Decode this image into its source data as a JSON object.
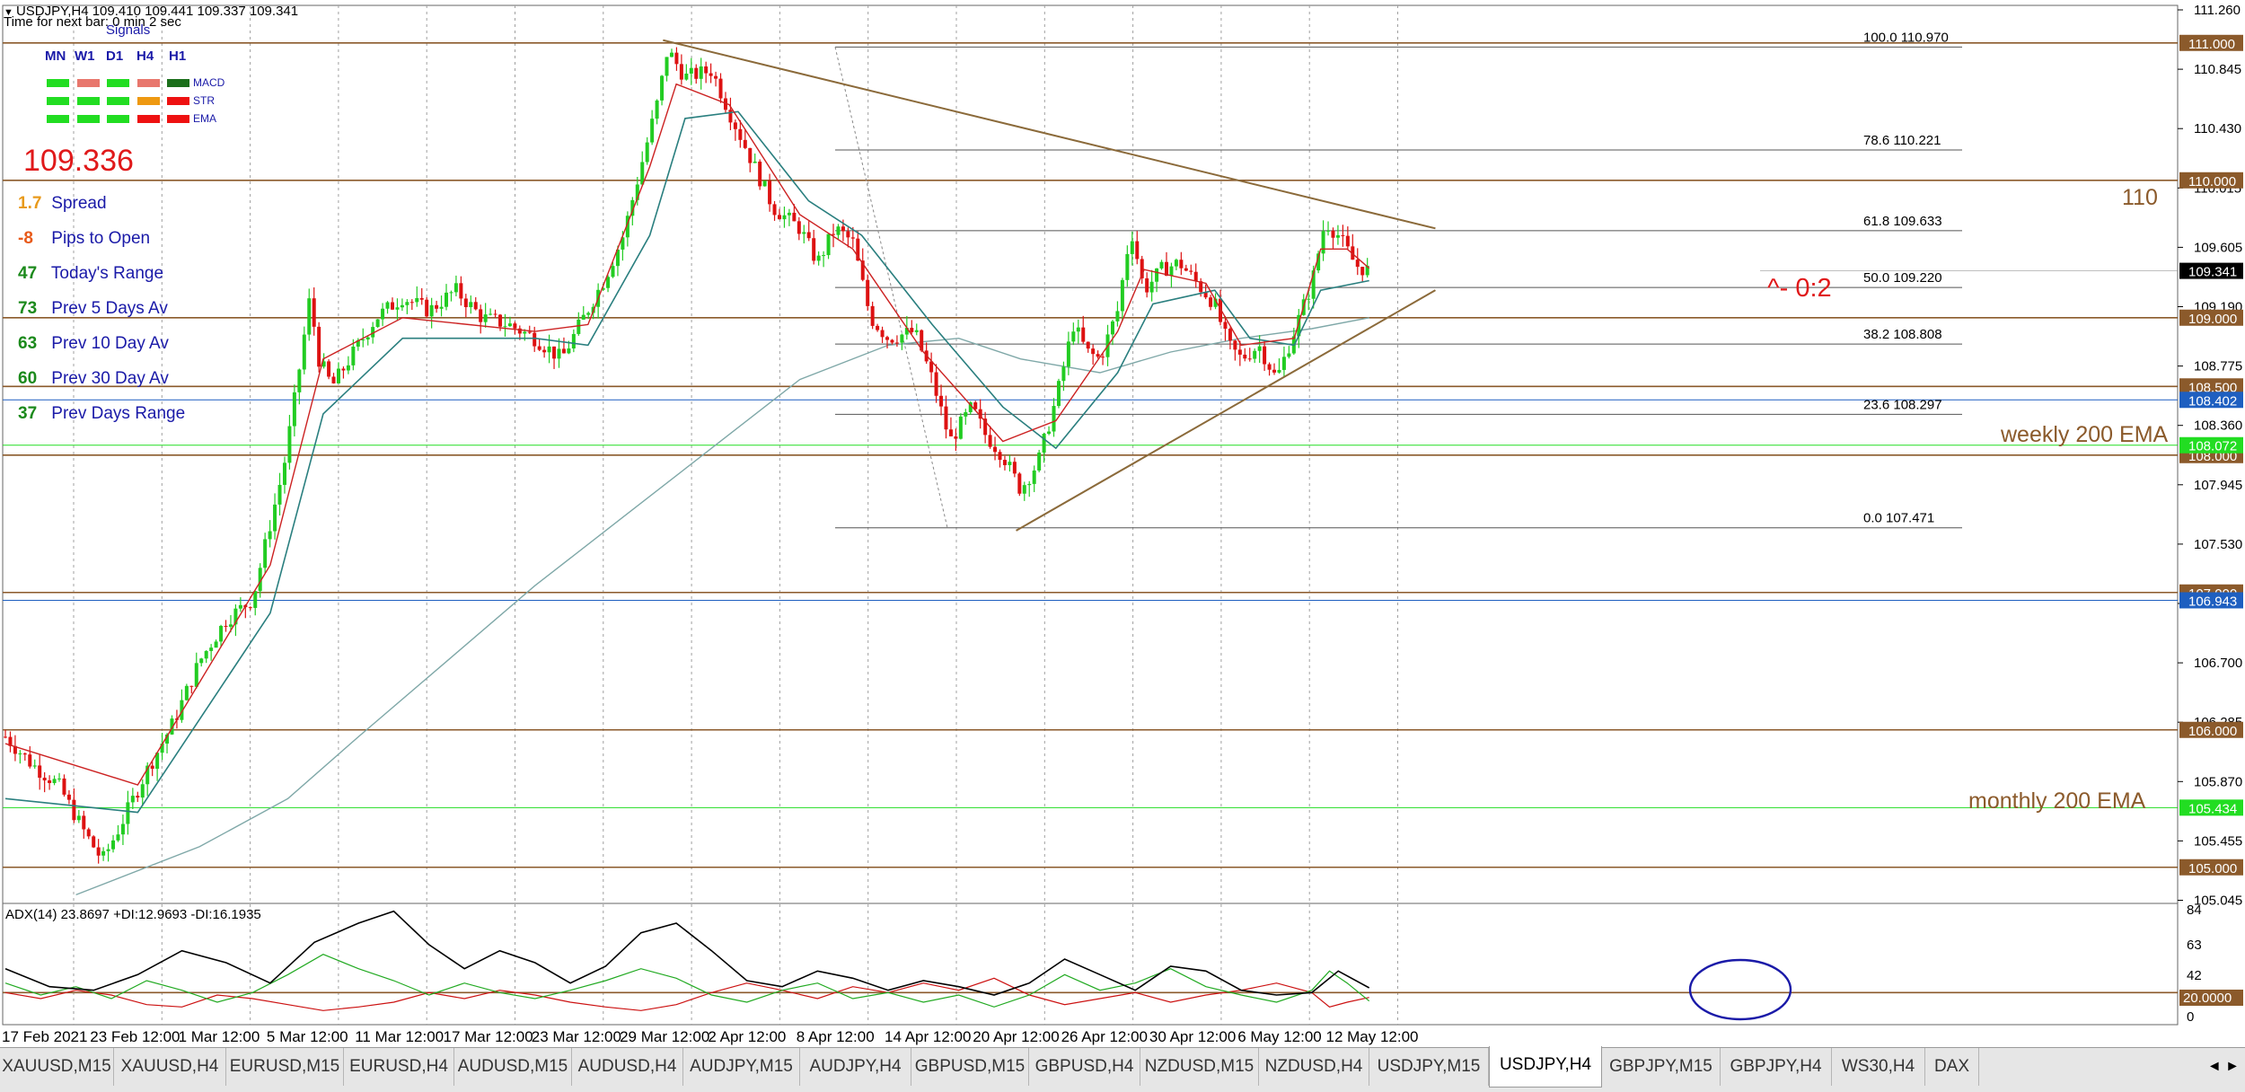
{
  "header": {
    "symbol_line": "USDJPY,H4  109.410 109.441 109.337 109.341",
    "timer_line": "Time for next bar: 0 min 2 sec",
    "menu_icon": "triangle-down-icon"
  },
  "signals": {
    "title": "Signals",
    "timeframes": [
      "MN",
      "W1",
      "D1",
      "H4",
      "H1"
    ],
    "indicators": [
      "MACD",
      "STR",
      "EMA"
    ],
    "grid": [
      [
        "#22dd22",
        "#e8776d",
        "#22dd22",
        "#e8776d",
        "#1b6f1b"
      ],
      [
        "#22dd22",
        "#22dd22",
        "#22dd22",
        "#ee9911",
        "#ee1111"
      ],
      [
        "#22dd22",
        "#22dd22",
        "#22dd22",
        "#ee1111",
        "#ee1111"
      ]
    ]
  },
  "big_price": "109.336",
  "stats": [
    {
      "value": "1.7",
      "label": "Spread",
      "color": "#e89a1c"
    },
    {
      "value": "-8",
      "label": "Pips to Open",
      "color": "#e85a1a"
    },
    {
      "value": "47",
      "label": "Today's Range",
      "color": "#1c8a1c"
    },
    {
      "value": "73",
      "label": "Prev 5 Days Av",
      "color": "#1c8a1c"
    },
    {
      "value": "63",
      "label": "Prev 10 Day Av",
      "color": "#1c8a1c"
    },
    {
      "value": "60",
      "label": "Prev 30 Day Av",
      "color": "#1c8a1c"
    },
    {
      "value": "37",
      "label": "Prev Days Range",
      "color": "#1c8a1c"
    }
  ],
  "chart_data": {
    "type": "line",
    "title": "USDJPY,H4",
    "colors": {
      "bull": "#22cc22",
      "bear": "#dd1111",
      "ema_fast": "#cc2222",
      "ema_mid": "#2a7f7f",
      "ema_slow": "#7fa8a8",
      "horizontal": "#8b5a2b",
      "trend": "#8b6a3a",
      "grid": "#a0a0a0"
    },
    "x_dates": [
      "17 Feb 2021",
      "23 Feb 12:00",
      "1 Mar 12:00",
      "5 Mar 12:00",
      "11 Mar 12:00",
      "17 Mar 12:00",
      "23 Mar 12:00",
      "29 Mar 12:00",
      "2 Apr 12:00",
      "8 Apr 12:00",
      "14 Apr 12:00",
      "20 Apr 12:00",
      "26 Apr 12:00",
      "30 Apr 12:00",
      "6 May 12:00",
      "12 May 12:00"
    ],
    "ylim": [
      104.75,
      111.26
    ],
    "y_ticks": [
      "111.260",
      "110.845",
      "110.430",
      "110.015",
      "109.605",
      "109.190",
      "108.775",
      "108.360",
      "107.945",
      "107.530",
      "107.115",
      "106.700",
      "106.285",
      "105.870",
      "105.455",
      "105.045"
    ],
    "price_path": [
      [
        0,
        105.95
      ],
      [
        0.3,
        105.75
      ],
      [
        0.6,
        105.6
      ],
      [
        0.9,
        105.25
      ],
      [
        1.1,
        105.05
      ],
      [
        1.3,
        105.3
      ],
      [
        1.6,
        105.7
      ],
      [
        1.9,
        106.05
      ],
      [
        2.2,
        106.5
      ],
      [
        2.5,
        106.8
      ],
      [
        2.8,
        106.95
      ],
      [
        3.0,
        107.5
      ],
      [
        3.15,
        107.9
      ],
      [
        3.3,
        108.5
      ],
      [
        3.45,
        109.15
      ],
      [
        3.55,
        108.7
      ],
      [
        3.7,
        108.5
      ],
      [
        3.9,
        108.7
      ],
      [
        4.2,
        109.0
      ],
      [
        4.5,
        109.15
      ],
      [
        4.8,
        109.05
      ],
      [
        5.1,
        109.2
      ],
      [
        5.4,
        109.0
      ],
      [
        5.7,
        108.95
      ],
      [
        6.0,
        108.85
      ],
      [
        6.3,
        108.7
      ],
      [
        6.55,
        109.0
      ],
      [
        6.8,
        109.3
      ],
      [
        7.0,
        109.6
      ],
      [
        7.2,
        110.1
      ],
      [
        7.4,
        110.6
      ],
      [
        7.5,
        110.95
      ],
      [
        7.7,
        110.75
      ],
      [
        8.0,
        110.8
      ],
      [
        8.2,
        110.5
      ],
      [
        8.45,
        110.15
      ],
      [
        8.7,
        109.8
      ],
      [
        9.0,
        109.65
      ],
      [
        9.2,
        109.4
      ],
      [
        9.4,
        109.65
      ],
      [
        9.6,
        109.55
      ],
      [
        9.8,
        109.0
      ],
      [
        10.0,
        108.85
      ],
      [
        10.3,
        108.9
      ],
      [
        10.5,
        108.55
      ],
      [
        10.7,
        108.1
      ],
      [
        10.95,
        108.35
      ],
      [
        11.1,
        108.15
      ],
      [
        11.3,
        108.0
      ],
      [
        11.5,
        107.75
      ],
      [
        11.7,
        107.95
      ],
      [
        11.9,
        108.4
      ],
      [
        12.1,
        108.95
      ],
      [
        12.25,
        108.75
      ],
      [
        12.4,
        108.7
      ],
      [
        12.6,
        109.05
      ],
      [
        12.75,
        109.65
      ],
      [
        12.9,
        109.2
      ],
      [
        13.1,
        109.35
      ],
      [
        13.3,
        109.4
      ],
      [
        13.5,
        109.25
      ],
      [
        13.7,
        109.1
      ],
      [
        13.85,
        108.8
      ],
      [
        14.0,
        108.7
      ],
      [
        14.2,
        108.8
      ],
      [
        14.4,
        108.55
      ],
      [
        14.6,
        108.9
      ],
      [
        14.8,
        109.25
      ],
      [
        14.95,
        109.7
      ],
      [
        15.1,
        109.6
      ],
      [
        15.3,
        109.38
      ],
      [
        15.45,
        109.34
      ]
    ],
    "ema_fast": [
      [
        0,
        105.9
      ],
      [
        1.5,
        105.6
      ],
      [
        3.0,
        107.2
      ],
      [
        3.6,
        108.7
      ],
      [
        4.5,
        109.0
      ],
      [
        6.0,
        108.9
      ],
      [
        6.6,
        108.95
      ],
      [
        7.3,
        110.1
      ],
      [
        7.6,
        110.7
      ],
      [
        8.2,
        110.55
      ],
      [
        9.0,
        109.75
      ],
      [
        9.6,
        109.5
      ],
      [
        10.4,
        108.75
      ],
      [
        11.3,
        108.1
      ],
      [
        11.9,
        108.25
      ],
      [
        12.6,
        108.9
      ],
      [
        12.9,
        109.35
      ],
      [
        13.6,
        109.25
      ],
      [
        14.0,
        108.8
      ],
      [
        14.6,
        108.85
      ],
      [
        14.9,
        109.5
      ],
      [
        15.2,
        109.5
      ],
      [
        15.45,
        109.36
      ]
    ],
    "ema_mid": [
      [
        0,
        105.5
      ],
      [
        1.5,
        105.4
      ],
      [
        3.0,
        106.85
      ],
      [
        3.6,
        108.3
      ],
      [
        4.5,
        108.85
      ],
      [
        6.0,
        108.85
      ],
      [
        6.6,
        108.8
      ],
      [
        7.3,
        109.6
      ],
      [
        7.7,
        110.45
      ],
      [
        8.3,
        110.5
      ],
      [
        9.1,
        109.85
      ],
      [
        9.7,
        109.6
      ],
      [
        10.5,
        108.95
      ],
      [
        11.3,
        108.35
      ],
      [
        11.9,
        108.05
      ],
      [
        12.6,
        108.6
      ],
      [
        13.0,
        109.1
      ],
      [
        13.7,
        109.2
      ],
      [
        14.1,
        108.85
      ],
      [
        14.6,
        108.8
      ],
      [
        14.9,
        109.2
      ],
      [
        15.45,
        109.27
      ]
    ],
    "ema_slow": [
      [
        0.8,
        104.8
      ],
      [
        2.2,
        105.15
      ],
      [
        3.2,
        105.5
      ],
      [
        4.0,
        105.95
      ],
      [
        5.0,
        106.5
      ],
      [
        6.0,
        107.05
      ],
      [
        7.0,
        107.55
      ],
      [
        8.0,
        108.05
      ],
      [
        9.0,
        108.55
      ],
      [
        10.0,
        108.8
      ],
      [
        10.8,
        108.85
      ],
      [
        11.5,
        108.7
      ],
      [
        12.4,
        108.6
      ],
      [
        13.2,
        108.75
      ],
      [
        14.0,
        108.85
      ],
      [
        14.8,
        108.92
      ],
      [
        15.45,
        109.0
      ]
    ],
    "fibonacci": [
      {
        "level": "100.0",
        "price": "110.970",
        "value": 110.97
      },
      {
        "level": "78.6",
        "price": "110.221",
        "value": 110.221
      },
      {
        "level": "61.8",
        "price": "109.633",
        "value": 109.633
      },
      {
        "level": "50.0",
        "price": "109.220",
        "value": 109.22
      },
      {
        "level": "38.2",
        "price": "108.808",
        "value": 108.808
      },
      {
        "level": "23.6",
        "price": "108.297",
        "value": 108.297
      },
      {
        "level": "0.0",
        "price": "107.471",
        "value": 107.471
      }
    ],
    "horizontal_levels": [
      {
        "price": 111.0,
        "label": "111.000",
        "color": "#8b5a2b"
      },
      {
        "price": 110.0,
        "label": "110.000",
        "color": "#8b5a2b"
      },
      {
        "price": 109.0,
        "label": "109.000",
        "color": "#8b5a2b"
      },
      {
        "price": 108.5,
        "label": "108.500",
        "color": "#8b5a2b"
      },
      {
        "price": 108.0,
        "label": "108.000",
        "color": "#8b5a2b"
      },
      {
        "price": 107.0,
        "label": "107.000",
        "color": "#8b5a2b"
      },
      {
        "price": 106.0,
        "label": "106.000",
        "color": "#8b5a2b"
      },
      {
        "price": 105.0,
        "label": "105.000",
        "color": "#8b5a2b"
      }
    ],
    "ema_levels": [
      {
        "price": 108.402,
        "label": "108.402",
        "color": "#1e5fc0"
      },
      {
        "price": 108.072,
        "label": "108.072",
        "color": "#22dd22"
      },
      {
        "price": 106.943,
        "label": "106.943",
        "color": "#1e5fc0"
      },
      {
        "price": 105.434,
        "label": "105.434",
        "color": "#22dd22"
      }
    ],
    "current_price": {
      "price": 109.341,
      "label": "109.341"
    },
    "annotations": [
      {
        "text": "110",
        "color": "#8b5a2b"
      },
      {
        "text": "weekly 200 EMA",
        "color": "#8b5a2b"
      },
      {
        "text": "monthly 200 EMA",
        "color": "#8b5a2b"
      },
      {
        "text": "^- 0:2",
        "color": "#e0191a"
      }
    ],
    "trendlines": [
      {
        "name": "upper",
        "from": [
          7.45,
          111.02
        ],
        "to": [
          16.2,
          109.65
        ]
      },
      {
        "name": "lower",
        "from": [
          11.45,
          107.45
        ],
        "to": [
          16.2,
          109.2
        ]
      }
    ],
    "adx": {
      "label": "ADX(14) 23.8697 +DI:12.9693 -DI:16.1935",
      "ylim": [
        0,
        90
      ],
      "y_ticks": [
        "84",
        "63",
        "42",
        "20.0000",
        "0"
      ],
      "level": 20,
      "adx_line": [
        [
          0,
          40
        ],
        [
          0.5,
          25
        ],
        [
          1.0,
          22
        ],
        [
          1.5,
          35
        ],
        [
          2.0,
          55
        ],
        [
          2.5,
          45
        ],
        [
          3.0,
          28
        ],
        [
          3.5,
          62
        ],
        [
          4.0,
          78
        ],
        [
          4.4,
          88
        ],
        [
          4.8,
          60
        ],
        [
          5.2,
          40
        ],
        [
          5.6,
          55
        ],
        [
          6.0,
          45
        ],
        [
          6.4,
          28
        ],
        [
          6.8,
          42
        ],
        [
          7.2,
          70
        ],
        [
          7.6,
          78
        ],
        [
          8.0,
          55
        ],
        [
          8.4,
          30
        ],
        [
          8.8,
          25
        ],
        [
          9.2,
          38
        ],
        [
          9.6,
          32
        ],
        [
          10.0,
          22
        ],
        [
          10.4,
          30
        ],
        [
          10.8,
          25
        ],
        [
          11.2,
          18
        ],
        [
          11.6,
          28
        ],
        [
          12.0,
          48
        ],
        [
          12.4,
          35
        ],
        [
          12.8,
          22
        ],
        [
          13.2,
          42
        ],
        [
          13.6,
          38
        ],
        [
          14.0,
          22
        ],
        [
          14.4,
          18
        ],
        [
          14.8,
          20
        ],
        [
          15.1,
          38
        ],
        [
          15.45,
          24
        ]
      ],
      "plus_di": [
        [
          0,
          28
        ],
        [
          0.4,
          18
        ],
        [
          0.8,
          25
        ],
        [
          1.2,
          15
        ],
        [
          1.6,
          30
        ],
        [
          2.0,
          22
        ],
        [
          2.4,
          12
        ],
        [
          2.8,
          20
        ],
        [
          3.2,
          35
        ],
        [
          3.6,
          52
        ],
        [
          4.0,
          40
        ],
        [
          4.4,
          30
        ],
        [
          4.8,
          18
        ],
        [
          5.2,
          28
        ],
        [
          5.6,
          20
        ],
        [
          6.0,
          15
        ],
        [
          6.4,
          22
        ],
        [
          6.8,
          30
        ],
        [
          7.2,
          40
        ],
        [
          7.6,
          32
        ],
        [
          8.0,
          18
        ],
        [
          8.4,
          12
        ],
        [
          8.8,
          22
        ],
        [
          9.2,
          28
        ],
        [
          9.6,
          15
        ],
        [
          10.0,
          20
        ],
        [
          10.4,
          12
        ],
        [
          10.8,
          18
        ],
        [
          11.2,
          8
        ],
        [
          11.6,
          18
        ],
        [
          12.0,
          35
        ],
        [
          12.4,
          22
        ],
        [
          12.8,
          28
        ],
        [
          13.2,
          40
        ],
        [
          13.6,
          25
        ],
        [
          14.0,
          18
        ],
        [
          14.4,
          12
        ],
        [
          14.8,
          22
        ],
        [
          15.0,
          38
        ],
        [
          15.2,
          28
        ],
        [
          15.45,
          13
        ]
      ],
      "minus_di": [
        [
          0,
          20
        ],
        [
          0.4,
          15
        ],
        [
          0.8,
          22
        ],
        [
          1.2,
          18
        ],
        [
          1.6,
          10
        ],
        [
          2.0,
          8
        ],
        [
          2.4,
          18
        ],
        [
          2.8,
          15
        ],
        [
          3.2,
          10
        ],
        [
          3.6,
          5
        ],
        [
          4.0,
          8
        ],
        [
          4.4,
          12
        ],
        [
          4.8,
          20
        ],
        [
          5.2,
          15
        ],
        [
          5.6,
          22
        ],
        [
          6.0,
          18
        ],
        [
          6.4,
          12
        ],
        [
          6.8,
          8
        ],
        [
          7.2,
          5
        ],
        [
          7.6,
          10
        ],
        [
          8.0,
          20
        ],
        [
          8.4,
          28
        ],
        [
          8.8,
          22
        ],
        [
          9.2,
          15
        ],
        [
          9.6,
          25
        ],
        [
          10.0,
          20
        ],
        [
          10.4,
          28
        ],
        [
          10.8,
          22
        ],
        [
          11.2,
          32
        ],
        [
          11.6,
          18
        ],
        [
          12.0,
          10
        ],
        [
          12.4,
          15
        ],
        [
          12.8,
          20
        ],
        [
          13.2,
          12
        ],
        [
          13.6,
          18
        ],
        [
          14.0,
          22
        ],
        [
          14.4,
          28
        ],
        [
          14.8,
          20
        ],
        [
          15.0,
          8
        ],
        [
          15.2,
          12
        ],
        [
          15.45,
          16
        ]
      ]
    }
  },
  "tabs": [
    {
      "label": "XAUUSD,M15",
      "active": false
    },
    {
      "label": "XAUUSD,H4",
      "active": false
    },
    {
      "label": "EURUSD,M15",
      "active": false
    },
    {
      "label": "EURUSD,H4",
      "active": false
    },
    {
      "label": "AUDUSD,M15",
      "active": false
    },
    {
      "label": "AUDUSD,H4",
      "active": false
    },
    {
      "label": "AUDJPY,M15",
      "active": false
    },
    {
      "label": "AUDJPY,H4",
      "active": false
    },
    {
      "label": "GBPUSD,M15",
      "active": false
    },
    {
      "label": "GBPUSD,H4",
      "active": false
    },
    {
      "label": "NZDUSD,M15",
      "active": false
    },
    {
      "label": "NZDUSD,H4",
      "active": false
    },
    {
      "label": "USDJPY,M15",
      "active": false
    },
    {
      "label": "USDJPY,H4",
      "active": true
    },
    {
      "label": "GBPJPY,M15",
      "active": false
    },
    {
      "label": "GBPJPY,H4",
      "active": false
    },
    {
      "label": "WS30,H4",
      "active": false
    },
    {
      "label": "DAX",
      "active": false
    }
  ],
  "tab_scroll": "◄ ►"
}
